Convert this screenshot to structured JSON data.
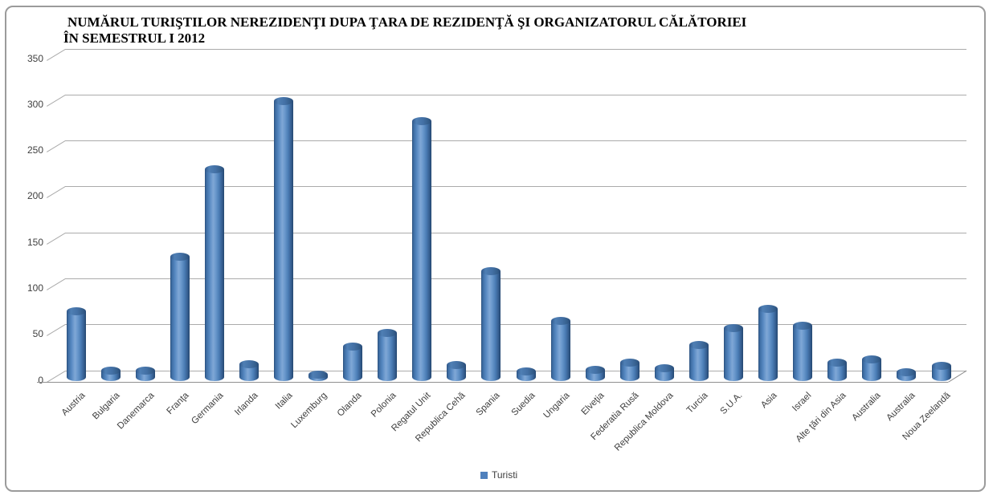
{
  "title": {
    "line1": "NUMĂRUL TURIŞTILOR NEREZIDENŢI DUPA ŢARA DE REZIDENŢĂ ŞI ORGANIZATORUL CĂLĂTORIEI",
    "line2": "ÎN SEMESTRUL I 2012"
  },
  "legend": {
    "label": "Turisti",
    "marker_color": "#4F81BD"
  },
  "chart_data": {
    "type": "bar",
    "subtype": "3d-cylinder",
    "title": "NUMĂRUL TURIŞTILOR NEREZIDENŢI DUPA ŢARA DE REZIDENŢĂ ŞI ORGANIZATORUL CĂLĂTORIEI ÎN SEMESTRUL I 2012",
    "xlabel": "",
    "ylabel": "",
    "ylim": [
      0,
      350
    ],
    "yticks": [
      0,
      50,
      100,
      150,
      200,
      250,
      300,
      350
    ],
    "grid": true,
    "legend_position": "bottom-center",
    "bar_color": "#4F81BD",
    "categories": [
      "Austria",
      "Bulgaria",
      "Danemarca",
      "Franţa",
      "Germania",
      "Irlanda",
      "Italia",
      "Luxemburg",
      "Olanda",
      "Polonia",
      "Regatul Unit",
      "Republica Cehă",
      "Spania",
      "Suedia",
      "Ungaria",
      "Elveţia",
      "Federatia Rusă",
      "Republica Moldova",
      "Turcia",
      "S.U.A.",
      "Asia",
      "Israel",
      "Alte ţări din Asia",
      "Australia",
      "Australia",
      "Noua Zeelandă"
    ],
    "series": [
      {
        "name": "Turisti",
        "values": [
          72,
          7,
          7,
          131,
          226,
          14,
          300,
          3,
          33,
          48,
          278,
          13,
          115,
          6,
          61,
          8,
          16,
          10,
          35,
          53,
          74,
          56,
          16,
          19,
          5,
          12
        ]
      }
    ]
  }
}
